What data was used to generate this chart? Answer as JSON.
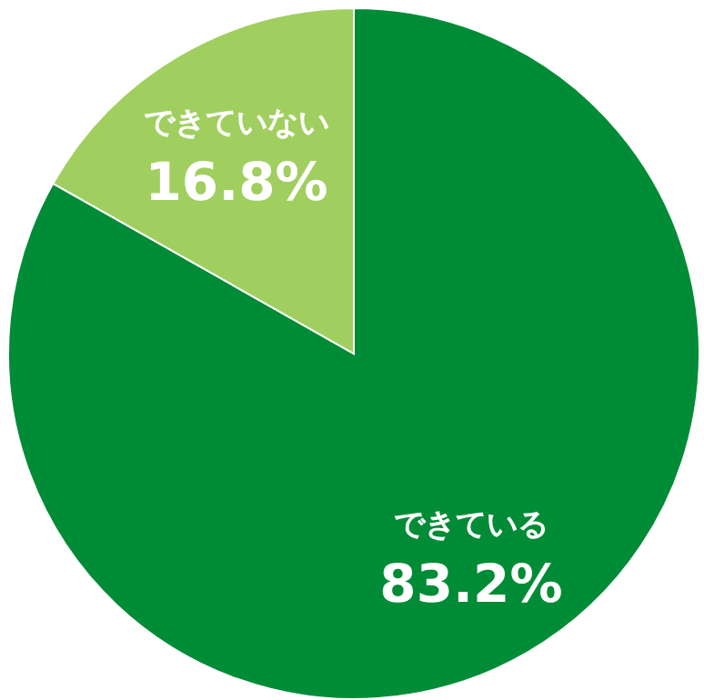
{
  "chart_data": {
    "type": "pie",
    "categories": [
      "できている",
      "できていない"
    ],
    "values": [
      83.2,
      16.8
    ],
    "colors": [
      "#008c36",
      "#a0cf5f"
    ],
    "value_labels": [
      "83.2%",
      "16.8%"
    ],
    "legend": false
  }
}
